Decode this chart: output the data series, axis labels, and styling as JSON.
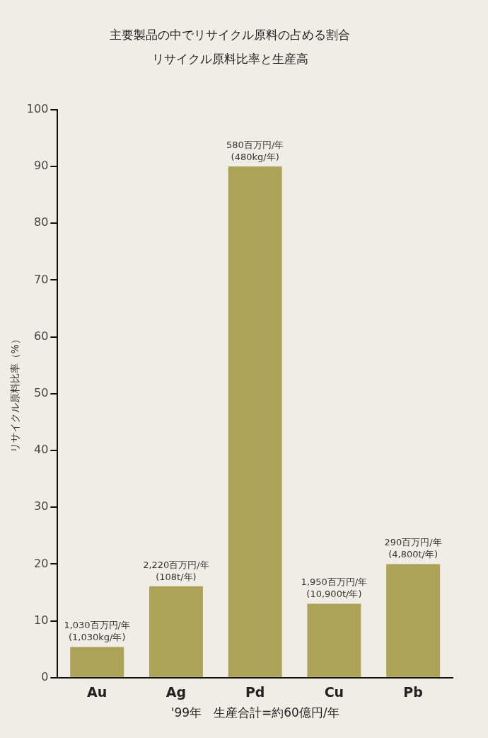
{
  "chart_data": {
    "type": "bar",
    "title": "主要製品の中でリサイクル原料の占める割合",
    "subtitle": "リサイクル原料比率と生産高",
    "xlabel": "'99年　生産合計=約60億円/年",
    "ylabel": "リサイクル原料比率（%）",
    "categories": [
      "Au",
      "Ag",
      "Pd",
      "Cu",
      "Pb"
    ],
    "values": [
      5.4,
      16.1,
      90,
      13,
      20
    ],
    "annotations": [
      {
        "text": "1,030百万円/年\n(1,030kg/年)",
        "x": "Au",
        "y": 5.4
      },
      {
        "text": "2,220百万円/年\n(108t/年)",
        "x": "Ag",
        "y": 16.1
      },
      {
        "text": "580百万円/年\n(480kg/年)",
        "x": "Pd",
        "y": 90
      },
      {
        "text": "1,950百万円/年\n(10,900t/年)",
        "x": "Cu",
        "y": 13
      },
      {
        "text": "290百万円/年\n(4,800t/年)",
        "x": "Pb",
        "y": 20
      }
    ],
    "color": "#aca258",
    "ylim": [
      0,
      100
    ],
    "yticks": [
      0,
      10,
      20,
      30,
      40,
      50,
      60,
      70,
      80,
      90,
      100
    ],
    "grid": false,
    "legend": false
  }
}
